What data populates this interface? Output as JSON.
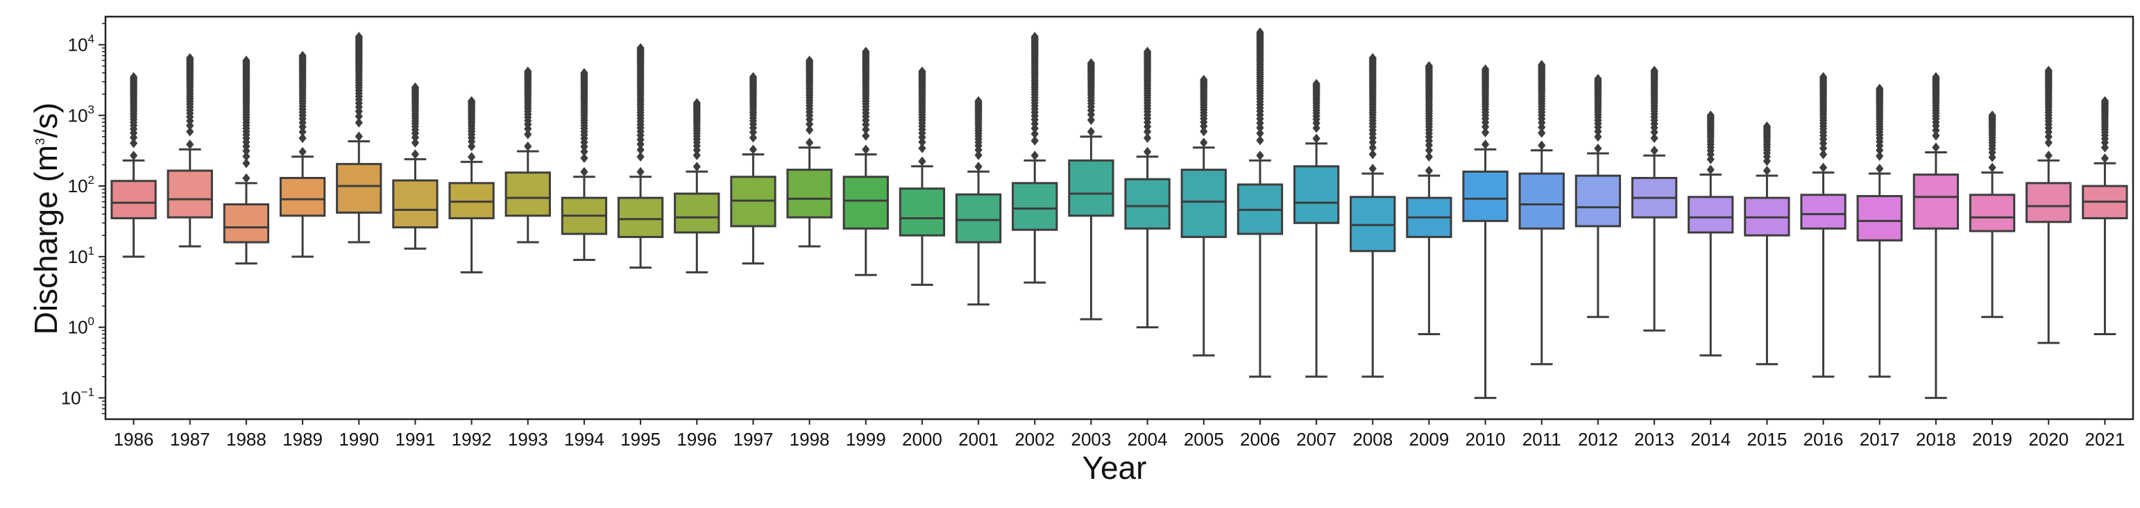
{
  "chart_data": {
    "type": "box",
    "xlabel": "Year",
    "ylabel_prefix": "Discharge (m",
    "ylabel_sup": "3",
    "ylabel_suffix": "/s)",
    "yscale": "log",
    "ylim": [
      0.05,
      25000
    ],
    "y_ticks": [
      {
        "value": 0.1,
        "base": "10",
        "exp": "−1"
      },
      {
        "value": 1,
        "base": "10",
        "exp": "0"
      },
      {
        "value": 10,
        "base": "10",
        "exp": "1"
      },
      {
        "value": 100,
        "base": "10",
        "exp": "2"
      },
      {
        "value": 1000,
        "base": "10",
        "exp": "3"
      },
      {
        "value": 10000,
        "base": "10",
        "exp": "4"
      }
    ],
    "grid": false,
    "legend": "none",
    "boxes": [
      {
        "year": "1986",
        "color": "#e68a8f",
        "min": 10,
        "q1": 35,
        "median": 58,
        "q3": 118,
        "max": 230,
        "outlier_max": 3500
      },
      {
        "year": "1987",
        "color": "#e8908a",
        "min": 14,
        "q1": 36,
        "median": 65,
        "q3": 165,
        "max": 330,
        "outlier_max": 6500
      },
      {
        "year": "1988",
        "color": "#e59472",
        "min": 8,
        "q1": 16,
        "median": 26,
        "q3": 55,
        "max": 110,
        "outlier_max": 6000
      },
      {
        "year": "1989",
        "color": "#e09a5a",
        "min": 10,
        "q1": 38,
        "median": 65,
        "q3": 130,
        "max": 260,
        "outlier_max": 7000
      },
      {
        "year": "1990",
        "color": "#d39f4e",
        "min": 16,
        "q1": 42,
        "median": 100,
        "q3": 205,
        "max": 430,
        "outlier_max": 13000
      },
      {
        "year": "1991",
        "color": "#c7a64a",
        "min": 13,
        "q1": 26,
        "median": 46,
        "q3": 120,
        "max": 240,
        "outlier_max": 2500
      },
      {
        "year": "1992",
        "color": "#bea945",
        "min": 6,
        "q1": 35,
        "median": 60,
        "q3": 110,
        "max": 220,
        "outlier_max": 1600
      },
      {
        "year": "1993",
        "color": "#b1ab44",
        "min": 16,
        "q1": 38,
        "median": 68,
        "q3": 155,
        "max": 310,
        "outlier_max": 4200
      },
      {
        "year": "1994",
        "color": "#a7ac42",
        "min": 9,
        "q1": 21,
        "median": 38,
        "q3": 68,
        "max": 135,
        "outlier_max": 4000
      },
      {
        "year": "1995",
        "color": "#9cad42",
        "min": 7,
        "q1": 19,
        "median": 34,
        "q3": 68,
        "max": 135,
        "outlier_max": 9000
      },
      {
        "year": "1996",
        "color": "#8fad42",
        "min": 6,
        "q1": 22,
        "median": 36,
        "q3": 78,
        "max": 160,
        "outlier_max": 1500
      },
      {
        "year": "1997",
        "color": "#82ae42",
        "min": 8,
        "q1": 27,
        "median": 62,
        "q3": 135,
        "max": 280,
        "outlier_max": 3500
      },
      {
        "year": "1998",
        "color": "#6faf45",
        "min": 14,
        "q1": 36,
        "median": 66,
        "q3": 170,
        "max": 350,
        "outlier_max": 6000
      },
      {
        "year": "1999",
        "color": "#4fae52",
        "min": 5.5,
        "q1": 25,
        "median": 62,
        "q3": 135,
        "max": 280,
        "outlier_max": 8000
      },
      {
        "year": "2000",
        "color": "#44ad6e",
        "min": 4,
        "q1": 20,
        "median": 35,
        "q3": 92,
        "max": 190,
        "outlier_max": 4200
      },
      {
        "year": "2001",
        "color": "#43ac80",
        "min": 2.1,
        "q1": 16,
        "median": 33,
        "q3": 76,
        "max": 160,
        "outlier_max": 1600
      },
      {
        "year": "2002",
        "color": "#42ab8d",
        "min": 4.3,
        "q1": 24,
        "median": 48,
        "q3": 110,
        "max": 230,
        "outlier_max": 13000
      },
      {
        "year": "2003",
        "color": "#40aa98",
        "min": 1.3,
        "q1": 38,
        "median": 78,
        "q3": 230,
        "max": 500,
        "outlier_max": 5500
      },
      {
        "year": "2004",
        "color": "#3fa9a3",
        "min": 1,
        "q1": 25,
        "median": 52,
        "q3": 125,
        "max": 260,
        "outlier_max": 8000
      },
      {
        "year": "2005",
        "color": "#3ea8ad",
        "min": 0.4,
        "q1": 19,
        "median": 60,
        "q3": 170,
        "max": 350,
        "outlier_max": 3200
      },
      {
        "year": "2006",
        "color": "#3ea7b6",
        "min": 0.2,
        "q1": 21,
        "median": 46,
        "q3": 105,
        "max": 230,
        "outlier_max": 15000
      },
      {
        "year": "2007",
        "color": "#3ea6bf",
        "min": 0.2,
        "q1": 30,
        "median": 58,
        "q3": 190,
        "max": 400,
        "outlier_max": 2800
      },
      {
        "year": "2008",
        "color": "#40a5c8",
        "min": 0.2,
        "q1": 12,
        "median": 28,
        "q3": 70,
        "max": 150,
        "outlier_max": 6500
      },
      {
        "year": "2009",
        "color": "#42a3d2",
        "min": 0.8,
        "q1": 19,
        "median": 36,
        "q3": 68,
        "max": 140,
        "outlier_max": 5000
      },
      {
        "year": "2010",
        "color": "#4aa0de",
        "min": 0.1,
        "q1": 32,
        "median": 66,
        "q3": 160,
        "max": 330,
        "outlier_max": 4500
      },
      {
        "year": "2011",
        "color": "#6a9de6",
        "min": 0.3,
        "q1": 25,
        "median": 55,
        "q3": 150,
        "max": 320,
        "outlier_max": 5200
      },
      {
        "year": "2012",
        "color": "#8aa2ea",
        "min": 1.4,
        "q1": 27,
        "median": 50,
        "q3": 140,
        "max": 290,
        "outlier_max": 3300
      },
      {
        "year": "2013",
        "color": "#a29cec",
        "min": 0.9,
        "q1": 36,
        "median": 68,
        "q3": 130,
        "max": 270,
        "outlier_max": 4300
      },
      {
        "year": "2014",
        "color": "#b493ec",
        "min": 0.4,
        "q1": 22,
        "median": 36,
        "q3": 70,
        "max": 145,
        "outlier_max": 1000
      },
      {
        "year": "2015",
        "color": "#c18ae8",
        "min": 0.3,
        "q1": 20,
        "median": 36,
        "q3": 68,
        "max": 140,
        "outlier_max": 700
      },
      {
        "year": "2016",
        "color": "#cf83e5",
        "min": 0.2,
        "q1": 25,
        "median": 40,
        "q3": 75,
        "max": 155,
        "outlier_max": 3500
      },
      {
        "year": "2017",
        "color": "#db7fdc",
        "min": 0.2,
        "q1": 17,
        "median": 32,
        "q3": 72,
        "max": 150,
        "outlier_max": 2400
      },
      {
        "year": "2018",
        "color": "#e382cd",
        "min": 0.1,
        "q1": 25,
        "median": 70,
        "q3": 145,
        "max": 300,
        "outlier_max": 3500
      },
      {
        "year": "2019",
        "color": "#e584bd",
        "min": 1.4,
        "q1": 23,
        "median": 36,
        "q3": 75,
        "max": 155,
        "outlier_max": 1000
      },
      {
        "year": "2020",
        "color": "#e687ae",
        "min": 0.6,
        "q1": 31,
        "median": 52,
        "q3": 110,
        "max": 230,
        "outlier_max": 4300
      },
      {
        "year": "2021",
        "color": "#e78aa0",
        "min": 0.8,
        "q1": 35,
        "median": 60,
        "q3": 100,
        "max": 210,
        "outlier_max": 1600
      }
    ]
  }
}
